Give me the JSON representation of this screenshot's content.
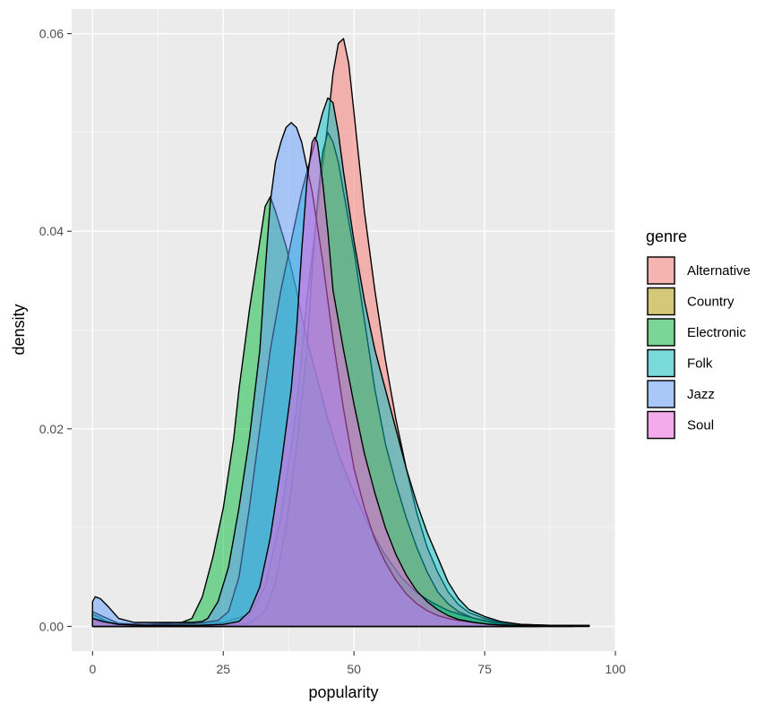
{
  "chart_data": {
    "type": "area",
    "subtype": "density",
    "xlabel": "popularity",
    "ylabel": "density",
    "xlim": [
      -4,
      100
    ],
    "ylim": [
      -0.0025,
      0.0625
    ],
    "x_ticks": [
      0,
      25,
      50,
      75,
      100
    ],
    "x_tick_labels": [
      "0",
      "25",
      "50",
      "75",
      "100"
    ],
    "y_ticks": [
      0,
      0.02,
      0.04,
      0.06
    ],
    "y_tick_labels": [
      "0.00",
      "0.02",
      "0.04",
      "0.06"
    ],
    "grid": true,
    "panel_background": "#EBEBEB",
    "legend": {
      "title": "genre",
      "position": "right"
    },
    "series": [
      {
        "name": "Alternative",
        "color": "#F8766D",
        "points": [
          [
            0,
            0.0008
          ],
          [
            2,
            0.0006
          ],
          [
            5,
            0.0002
          ],
          [
            10,
            0.0001
          ],
          [
            15,
            0.0001
          ],
          [
            20,
            0.0002
          ],
          [
            25,
            0.0004
          ],
          [
            30,
            0.0012
          ],
          [
            33,
            0.004
          ],
          [
            36,
            0.011
          ],
          [
            39,
            0.022
          ],
          [
            41,
            0.033
          ],
          [
            43,
            0.042
          ],
          [
            45,
            0.051
          ],
          [
            46,
            0.056
          ],
          [
            47,
            0.059
          ],
          [
            48,
            0.0595
          ],
          [
            49,
            0.057
          ],
          [
            50,
            0.052
          ],
          [
            52,
            0.042
          ],
          [
            54,
            0.034
          ],
          [
            56,
            0.027
          ],
          [
            58,
            0.021
          ],
          [
            60,
            0.016
          ],
          [
            62,
            0.0115
          ],
          [
            64,
            0.008
          ],
          [
            66,
            0.0055
          ],
          [
            68,
            0.0035
          ],
          [
            70,
            0.0022
          ],
          [
            72,
            0.0014
          ],
          [
            75,
            0.0008
          ],
          [
            78,
            0.0004
          ],
          [
            82,
            0.0002
          ],
          [
            88,
            0.0001
          ],
          [
            95,
            0.0001
          ]
        ]
      },
      {
        "name": "Country",
        "color": "#B79F00",
        "points": [
          [
            0,
            0.0006
          ],
          [
            2,
            0.0004
          ],
          [
            5,
            0.0001
          ],
          [
            10,
            0.0001
          ],
          [
            15,
            0.0001
          ],
          [
            20,
            0.0001
          ],
          [
            25,
            0.0001
          ],
          [
            30,
            0.0003
          ],
          [
            33,
            0.0015
          ],
          [
            35,
            0.0045
          ],
          [
            37,
            0.01
          ],
          [
            39,
            0.018
          ],
          [
            41,
            0.028
          ],
          [
            42,
            0.036
          ],
          [
            43,
            0.043
          ],
          [
            44,
            0.048
          ],
          [
            45,
            0.05
          ],
          [
            46,
            0.049
          ],
          [
            47,
            0.047
          ],
          [
            48,
            0.044
          ],
          [
            50,
            0.038
          ],
          [
            52,
            0.031
          ],
          [
            54,
            0.024
          ],
          [
            56,
            0.0185
          ],
          [
            58,
            0.0145
          ],
          [
            60,
            0.011
          ],
          [
            62,
            0.008
          ],
          [
            64,
            0.0055
          ],
          [
            66,
            0.0035
          ],
          [
            68,
            0.0023
          ],
          [
            70,
            0.0015
          ],
          [
            73,
            0.0008
          ],
          [
            76,
            0.0004
          ],
          [
            80,
            0.0002
          ],
          [
            85,
            0.0001
          ],
          [
            92,
            0.0001
          ]
        ]
      },
      {
        "name": "Electronic",
        "color": "#00BA38",
        "points": [
          [
            0,
            0.0012
          ],
          [
            1,
            0.001
          ],
          [
            3,
            0.0004
          ],
          [
            6,
            0.0002
          ],
          [
            10,
            0.0002
          ],
          [
            14,
            0.0003
          ],
          [
            17,
            0.0004
          ],
          [
            19,
            0.0008
          ],
          [
            21,
            0.003
          ],
          [
            23,
            0.007
          ],
          [
            25,
            0.012
          ],
          [
            27,
            0.019
          ],
          [
            28,
            0.024
          ],
          [
            30,
            0.032
          ],
          [
            32,
            0.039
          ],
          [
            33,
            0.0425
          ],
          [
            34,
            0.0435
          ],
          [
            35,
            0.042
          ],
          [
            37,
            0.0385
          ],
          [
            39,
            0.034
          ],
          [
            41,
            0.029
          ],
          [
            43,
            0.025
          ],
          [
            45,
            0.021
          ],
          [
            47,
            0.0175
          ],
          [
            50,
            0.0135
          ],
          [
            53,
            0.01
          ],
          [
            56,
            0.0072
          ],
          [
            59,
            0.005
          ],
          [
            62,
            0.0034
          ],
          [
            65,
            0.0024
          ],
          [
            68,
            0.0016
          ],
          [
            71,
            0.0011
          ],
          [
            74,
            0.0007
          ],
          [
            77,
            0.0004
          ],
          [
            80,
            0.0002
          ],
          [
            85,
            0.0001
          ],
          [
            92,
            0.0001
          ]
        ]
      },
      {
        "name": "Folk",
        "color": "#00BFC4",
        "points": [
          [
            0,
            0.0015
          ],
          [
            2,
            0.001
          ],
          [
            5,
            0.0003
          ],
          [
            10,
            0.0002
          ],
          [
            15,
            0.0002
          ],
          [
            20,
            0.0003
          ],
          [
            24,
            0.0006
          ],
          [
            26,
            0.0015
          ],
          [
            28,
            0.005
          ],
          [
            30,
            0.012
          ],
          [
            32,
            0.02
          ],
          [
            34,
            0.028
          ],
          [
            36,
            0.034
          ],
          [
            38,
            0.039
          ],
          [
            40,
            0.044
          ],
          [
            42,
            0.048
          ],
          [
            44,
            0.052
          ],
          [
            45,
            0.0535
          ],
          [
            46,
            0.053
          ],
          [
            47,
            0.05
          ],
          [
            48,
            0.046
          ],
          [
            50,
            0.039
          ],
          [
            52,
            0.033
          ],
          [
            54,
            0.028
          ],
          [
            56,
            0.024
          ],
          [
            58,
            0.02
          ],
          [
            60,
            0.016
          ],
          [
            62,
            0.0125
          ],
          [
            64,
            0.0095
          ],
          [
            66,
            0.007
          ],
          [
            68,
            0.0045
          ],
          [
            70,
            0.0028
          ],
          [
            72,
            0.0017
          ],
          [
            75,
            0.001
          ],
          [
            78,
            0.0005
          ],
          [
            82,
            0.0002
          ],
          [
            88,
            0.0001
          ],
          [
            95,
            0.0001
          ]
        ]
      },
      {
        "name": "Jazz",
        "color": "#619CFF",
        "points": [
          [
            0,
            0.0025
          ],
          [
            0.5,
            0.003
          ],
          [
            1.5,
            0.0028
          ],
          [
            3,
            0.002
          ],
          [
            5,
            0.0008
          ],
          [
            8,
            0.0004
          ],
          [
            12,
            0.0004
          ],
          [
            16,
            0.0004
          ],
          [
            19,
            0.0004
          ],
          [
            21,
            0.0005
          ],
          [
            22,
            0.0008
          ],
          [
            24,
            0.0025
          ],
          [
            26,
            0.006
          ],
          [
            28,
            0.012
          ],
          [
            30,
            0.019
          ],
          [
            32,
            0.028
          ],
          [
            33,
            0.036
          ],
          [
            34,
            0.043
          ],
          [
            35,
            0.047
          ],
          [
            36,
            0.049
          ],
          [
            37,
            0.0505
          ],
          [
            38,
            0.051
          ],
          [
            39,
            0.0505
          ],
          [
            40,
            0.049
          ],
          [
            42,
            0.044
          ],
          [
            44,
            0.037
          ],
          [
            46,
            0.029
          ],
          [
            48,
            0.022
          ],
          [
            50,
            0.016
          ],
          [
            52,
            0.012
          ],
          [
            54,
            0.0088
          ],
          [
            56,
            0.0065
          ],
          [
            58,
            0.0047
          ],
          [
            60,
            0.0033
          ],
          [
            62,
            0.0023
          ],
          [
            64,
            0.0016
          ],
          [
            66,
            0.0011
          ],
          [
            68,
            0.0008
          ],
          [
            70,
            0.0006
          ],
          [
            73,
            0.0004
          ],
          [
            76,
            0.0002
          ],
          [
            80,
            0.0001
          ],
          [
            85,
            0.0001
          ]
        ]
      },
      {
        "name": "Soul",
        "color": "#F564E3",
        "points": [
          [
            0,
            0.0008
          ],
          [
            2,
            0.0005
          ],
          [
            5,
            0.0002
          ],
          [
            10,
            0.0001
          ],
          [
            15,
            0.0001
          ],
          [
            20,
            0.0001
          ],
          [
            25,
            0.0002
          ],
          [
            28,
            0.0005
          ],
          [
            30,
            0.0015
          ],
          [
            32,
            0.004
          ],
          [
            34,
            0.009
          ],
          [
            36,
            0.016
          ],
          [
            38,
            0.024
          ],
          [
            39,
            0.03
          ],
          [
            40,
            0.038
          ],
          [
            41,
            0.045
          ],
          [
            42,
            0.049
          ],
          [
            42.5,
            0.0495
          ],
          [
            43,
            0.049
          ],
          [
            44,
            0.045
          ],
          [
            45,
            0.04
          ],
          [
            46,
            0.034
          ],
          [
            48,
            0.028
          ],
          [
            50,
            0.0225
          ],
          [
            52,
            0.0175
          ],
          [
            54,
            0.0135
          ],
          [
            56,
            0.01
          ],
          [
            58,
            0.0073
          ],
          [
            60,
            0.0052
          ],
          [
            62,
            0.0036
          ],
          [
            64,
            0.0025
          ],
          [
            66,
            0.0017
          ],
          [
            68,
            0.0011
          ],
          [
            70,
            0.0007
          ],
          [
            73,
            0.0004
          ],
          [
            76,
            0.0002
          ],
          [
            80,
            0.0001
          ],
          [
            85,
            0.0001
          ]
        ]
      }
    ]
  }
}
